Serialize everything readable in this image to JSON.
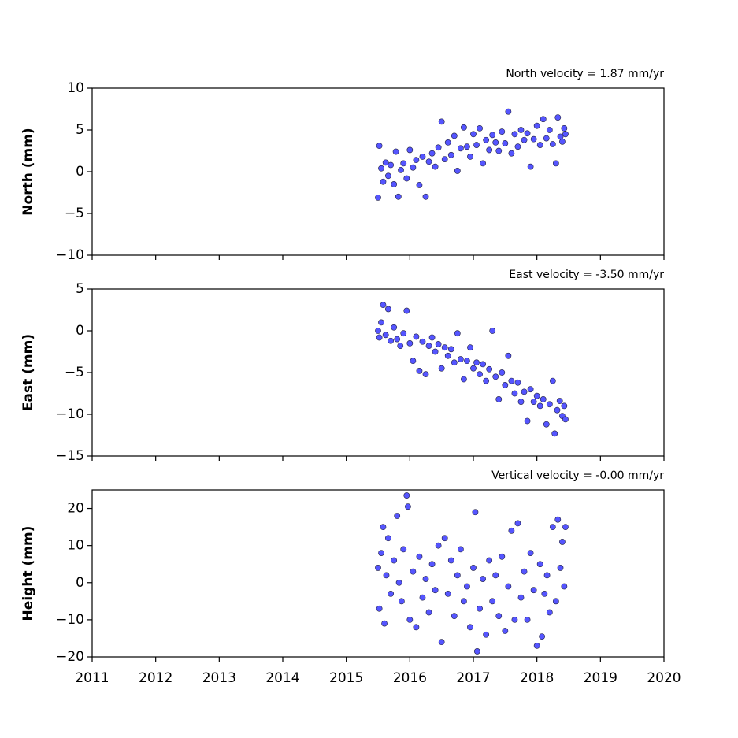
{
  "chart_data": [
    {
      "type": "scatter",
      "title": "North velocity = 1.87 mm/yr",
      "ylabel": "North (mm)",
      "color": "#5555ff",
      "x": [
        2015.5,
        2015.52,
        2015.55,
        2015.58,
        2015.62,
        2015.66,
        2015.7,
        2015.75,
        2015.78,
        2015.82,
        2015.86,
        2015.9,
        2015.95,
        2016.0,
        2016.05,
        2016.1,
        2016.15,
        2016.2,
        2016.25,
        2016.3,
        2016.35,
        2016.4,
        2016.45,
        2016.5,
        2016.55,
        2016.6,
        2016.65,
        2016.7,
        2016.75,
        2016.8,
        2016.85,
        2016.9,
        2016.95,
        2017.0,
        2017.05,
        2017.1,
        2017.15,
        2017.2,
        2017.25,
        2017.3,
        2017.35,
        2017.4,
        2017.45,
        2017.5,
        2017.55,
        2017.6,
        2017.65,
        2017.7,
        2017.75,
        2017.8,
        2017.85,
        2017.9,
        2017.95,
        2018.0,
        2018.05,
        2018.1,
        2018.15,
        2018.2,
        2018.25,
        2018.3,
        2018.33,
        2018.37,
        2018.4,
        2018.43,
        2018.45
      ],
      "values": [
        -3.1,
        3.1,
        0.4,
        -1.2,
        1.1,
        -0.5,
        0.8,
        -1.5,
        2.4,
        -3.0,
        0.2,
        1.0,
        -0.8,
        2.6,
        0.5,
        1.4,
        -1.6,
        1.8,
        -3.0,
        1.2,
        2.2,
        0.6,
        2.9,
        6.0,
        1.5,
        3.5,
        2.0,
        4.3,
        0.1,
        2.8,
        5.3,
        3.0,
        1.8,
        4.5,
        3.2,
        5.2,
        1.0,
        3.8,
        2.6,
        4.4,
        3.5,
        2.5,
        4.8,
        3.4,
        7.2,
        2.2,
        4.5,
        3.0,
        5.0,
        3.8,
        4.6,
        0.6,
        3.9,
        5.5,
        3.2,
        6.3,
        4.0,
        5.0,
        3.3,
        1.0,
        6.5,
        4.2,
        3.6,
        5.2,
        4.5
      ],
      "xlim": [
        2011,
        2020
      ],
      "xticks": [
        2011,
        2012,
        2013,
        2014,
        2015,
        2016,
        2017,
        2018,
        2019,
        2020
      ],
      "ylim": [
        -10,
        10
      ],
      "yticks": [
        {
          "value": -10,
          "label": "−10"
        },
        {
          "value": -5,
          "label": "−5"
        },
        0,
        5,
        10
      ]
    },
    {
      "type": "scatter",
      "title": "East velocity = -3.50 mm/yr",
      "ylabel": "East (mm)",
      "color": "#5555ff",
      "x": [
        2015.5,
        2015.52,
        2015.55,
        2015.58,
        2015.62,
        2015.66,
        2015.7,
        2015.75,
        2015.8,
        2015.85,
        2015.9,
        2015.95,
        2016.0,
        2016.05,
        2016.1,
        2016.15,
        2016.2,
        2016.25,
        2016.3,
        2016.35,
        2016.4,
        2016.45,
        2016.5,
        2016.55,
        2016.6,
        2016.65,
        2016.7,
        2016.75,
        2016.8,
        2016.85,
        2016.9,
        2016.95,
        2017.0,
        2017.05,
        2017.1,
        2017.15,
        2017.2,
        2017.25,
        2017.3,
        2017.35,
        2017.4,
        2017.45,
        2017.5,
        2017.55,
        2017.6,
        2017.65,
        2017.7,
        2017.75,
        2017.8,
        2017.85,
        2017.9,
        2017.95,
        2018.0,
        2018.05,
        2018.1,
        2018.15,
        2018.2,
        2018.25,
        2018.28,
        2018.32,
        2018.36,
        2018.4,
        2018.43,
        2018.45
      ],
      "values": [
        0.0,
        -0.8,
        1.0,
        3.1,
        -0.5,
        2.6,
        -1.2,
        0.4,
        -1.0,
        -1.8,
        -0.3,
        2.4,
        -1.5,
        -3.6,
        -0.7,
        -4.8,
        -1.3,
        -5.2,
        -1.8,
        -0.8,
        -2.5,
        -1.6,
        -4.5,
        -2.0,
        -3.0,
        -2.2,
        -3.8,
        -0.3,
        -3.4,
        -5.8,
        -3.6,
        -2.0,
        -4.5,
        -3.8,
        -5.2,
        -4.0,
        -6.0,
        -4.6,
        0.0,
        -5.5,
        -8.2,
        -5.0,
        -6.5,
        -3.0,
        -6.0,
        -7.5,
        -6.2,
        -8.5,
        -7.3,
        -10.8,
        -7.0,
        -8.5,
        -7.8,
        -9.0,
        -8.2,
        -11.2,
        -8.8,
        -6.0,
        -12.3,
        -9.5,
        -8.4,
        -10.2,
        -9.0,
        -10.6
      ],
      "xlim": [
        2011,
        2020
      ],
      "xticks": [
        2011,
        2012,
        2013,
        2014,
        2015,
        2016,
        2017,
        2018,
        2019,
        2020
      ],
      "ylim": [
        -15,
        5
      ],
      "yticks": [
        {
          "value": -15,
          "label": "−15"
        },
        {
          "value": -10,
          "label": "−10"
        },
        {
          "value": -5,
          "label": "−5"
        },
        0,
        5
      ]
    },
    {
      "type": "scatter",
      "title": "Vertical velocity = -0.00 mm/yr",
      "ylabel": "Height (mm)",
      "color": "#5555ff",
      "x": [
        2015.5,
        2015.52,
        2015.55,
        2015.58,
        2015.6,
        2015.63,
        2015.66,
        2015.7,
        2015.75,
        2015.8,
        2015.83,
        2015.87,
        2015.9,
        2015.95,
        2015.97,
        2016.0,
        2016.05,
        2016.1,
        2016.15,
        2016.2,
        2016.25,
        2016.3,
        2016.35,
        2016.4,
        2016.45,
        2016.5,
        2016.55,
        2016.6,
        2016.65,
        2016.7,
        2016.75,
        2016.8,
        2016.85,
        2016.9,
        2016.95,
        2017.0,
        2017.03,
        2017.06,
        2017.1,
        2017.15,
        2017.2,
        2017.25,
        2017.3,
        2017.35,
        2017.4,
        2017.45,
        2017.5,
        2017.55,
        2017.6,
        2017.65,
        2017.7,
        2017.75,
        2017.8,
        2017.85,
        2017.9,
        2017.95,
        2018.0,
        2018.05,
        2018.08,
        2018.12,
        2018.16,
        2018.2,
        2018.25,
        2018.3,
        2018.33,
        2018.37,
        2018.4,
        2018.43,
        2018.45
      ],
      "values": [
        4,
        -7,
        8,
        15,
        -11,
        2,
        12,
        -3,
        6,
        18,
        0,
        -5,
        9,
        23.5,
        20.5,
        -10,
        3,
        -12,
        7,
        -4,
        1,
        -8,
        5,
        -2,
        10,
        -16,
        12,
        -3,
        6,
        -9,
        2,
        9,
        -5,
        -1,
        -12,
        4,
        19,
        -18.5,
        -7,
        1,
        -14,
        6,
        -5,
        2,
        -9,
        7,
        -13,
        -1,
        14,
        -10,
        16,
        -4,
        3,
        -10,
        8,
        -2,
        -17,
        5,
        -14.5,
        -3,
        2,
        -8,
        15,
        -5,
        17,
        4,
        11,
        -1,
        15
      ],
      "xlim": [
        2011,
        2020
      ],
      "xticks": [
        2011,
        2012,
        2013,
        2014,
        2015,
        2016,
        2017,
        2018,
        2019,
        2020
      ],
      "ylim": [
        -20,
        25
      ],
      "yticks": [
        {
          "value": -20,
          "label": "−20"
        },
        {
          "value": -10,
          "label": "−10"
        },
        0,
        10,
        20
      ]
    }
  ]
}
